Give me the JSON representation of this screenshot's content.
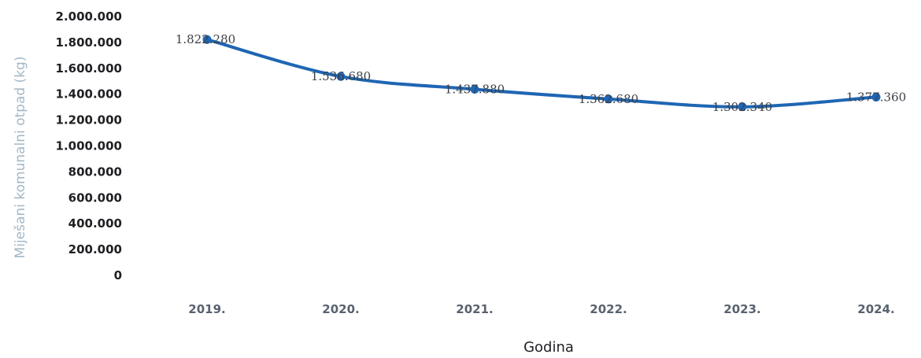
{
  "chart_data": {
    "type": "line",
    "categories": [
      "2019.",
      "2020.",
      "2021.",
      "2022.",
      "2023.",
      "2024."
    ],
    "series": [
      {
        "values": [
          1822280,
          1536680,
          1437880,
          1362680,
          1302340,
          1377360
        ],
        "labels": [
          "1.822.280",
          "1.536.680",
          "1.437.880",
          "1.362.680",
          "1.302.340",
          "1.377.360"
        ]
      }
    ],
    "yticks": [
      "2.000.000",
      "1.800.000",
      "1.600.000",
      "1.400.000",
      "1.200.000",
      "1.000.000",
      "800.000",
      "600.000",
      "400.000",
      "200.000",
      "0"
    ],
    "ylim": [
      0,
      2000000
    ],
    "xlabel": "Godina",
    "ylabel": "Miješani komunalni otpad (kg)",
    "grid": false,
    "legend": "none",
    "colors": {
      "line": "#1f66b3",
      "marker": "#1f66b3"
    }
  }
}
